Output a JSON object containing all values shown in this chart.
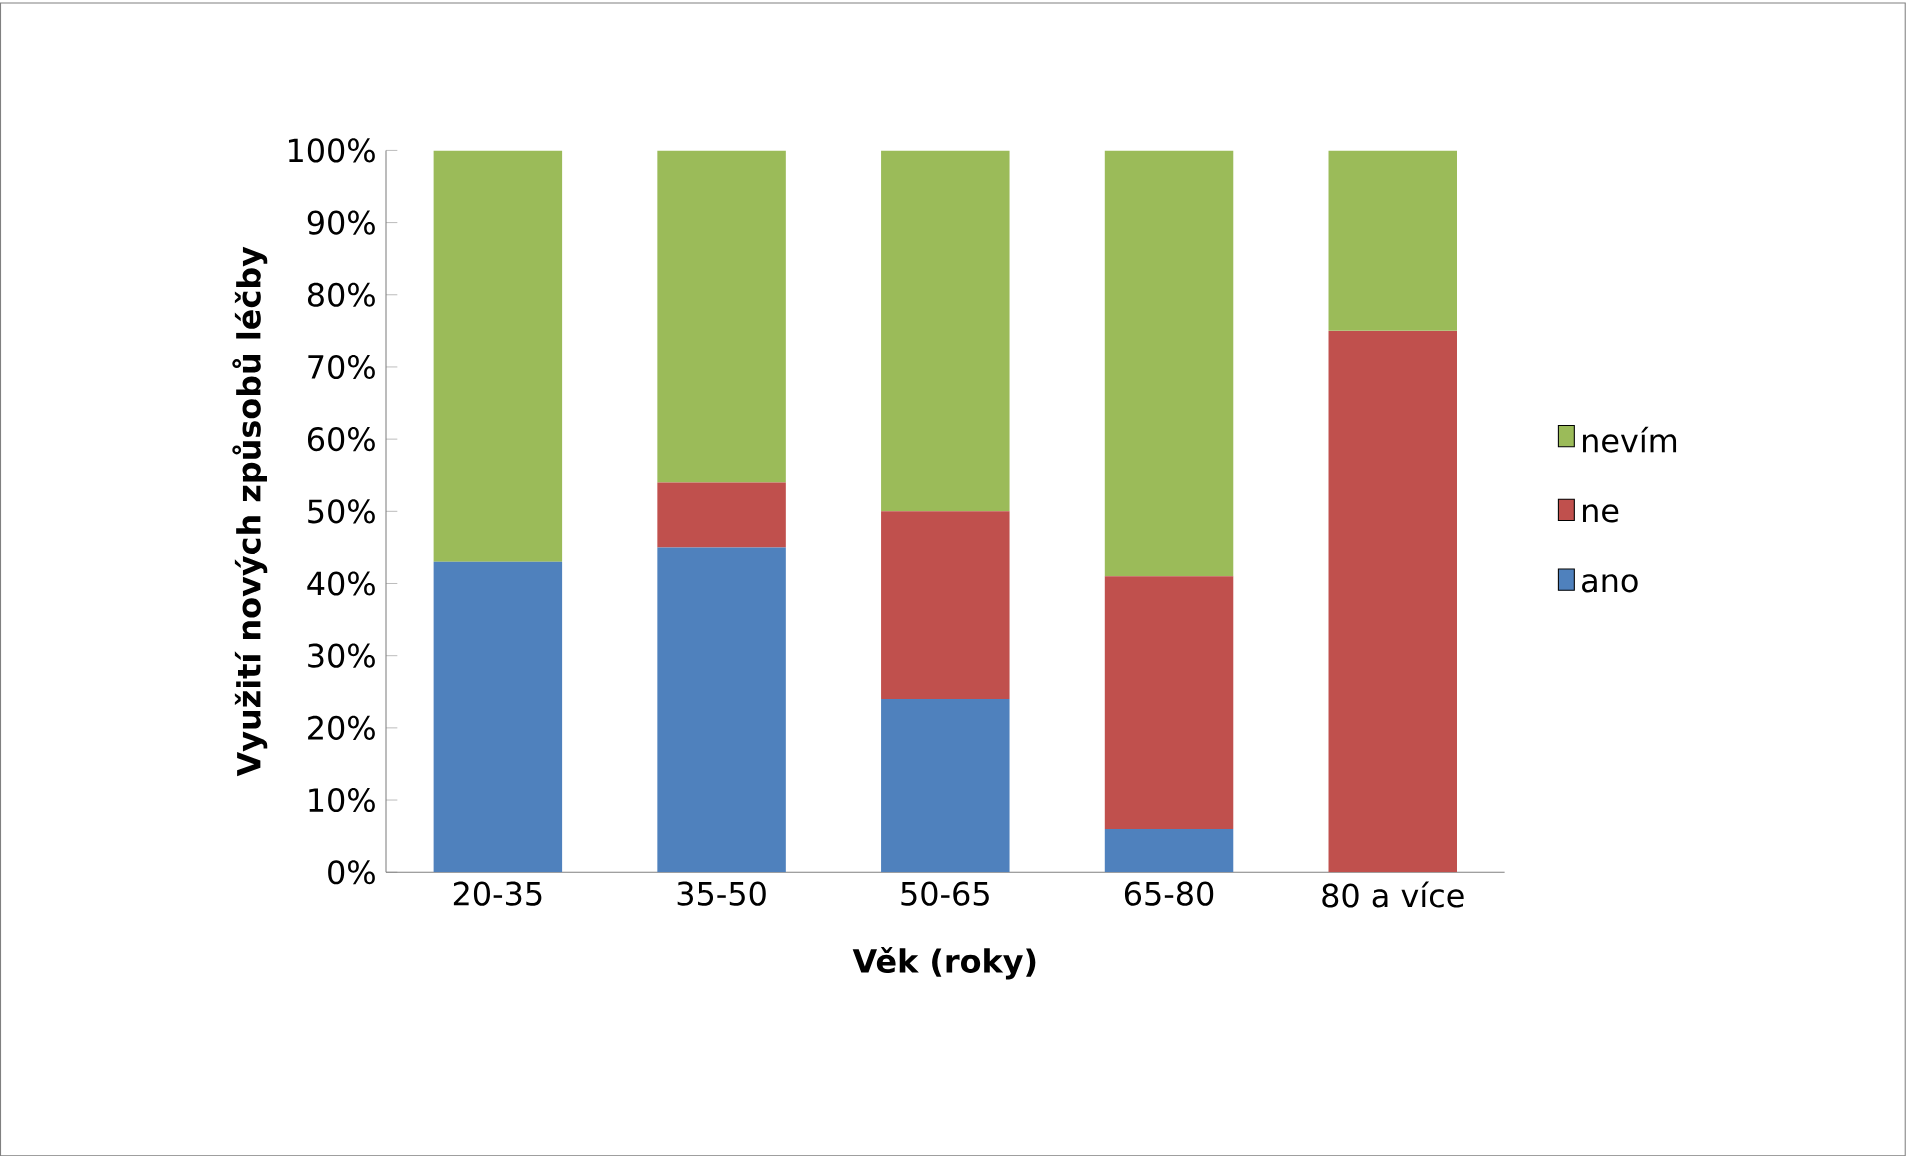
{
  "chart_data": {
    "type": "bar",
    "stacked": true,
    "xlabel": "Věk (roky)",
    "ylabel": "Využití nových způsobů  léčby",
    "categories": [
      "20-35",
      "35-50",
      "50-65",
      "65-80",
      "80 a více"
    ],
    "series": [
      {
        "name": "ano",
        "color": "#4f81bd",
        "values": [
          43,
          45,
          24,
          6,
          0
        ]
      },
      {
        "name": "ne",
        "color": "#c0504d",
        "values": [
          0,
          9,
          26,
          35,
          75
        ]
      },
      {
        "name": "nevím",
        "color": "#9bbb59",
        "values": [
          57,
          46,
          50,
          59,
          25
        ]
      }
    ],
    "ylim": [
      0,
      100
    ],
    "yticks": [
      {
        "value": 0,
        "label": "0%"
      },
      {
        "value": 10,
        "label": "10%"
      },
      {
        "value": 20,
        "label": "20%"
      },
      {
        "value": 30,
        "label": "30%"
      },
      {
        "value": 40,
        "label": "40%"
      },
      {
        "value": 50,
        "label": "50%"
      },
      {
        "value": 60,
        "label": "60%"
      },
      {
        "value": 70,
        "label": "70%"
      },
      {
        "value": 80,
        "label": "80%"
      },
      {
        "value": 90,
        "label": "90%"
      },
      {
        "value": 100,
        "label": "100%"
      }
    ],
    "legend": "right"
  }
}
